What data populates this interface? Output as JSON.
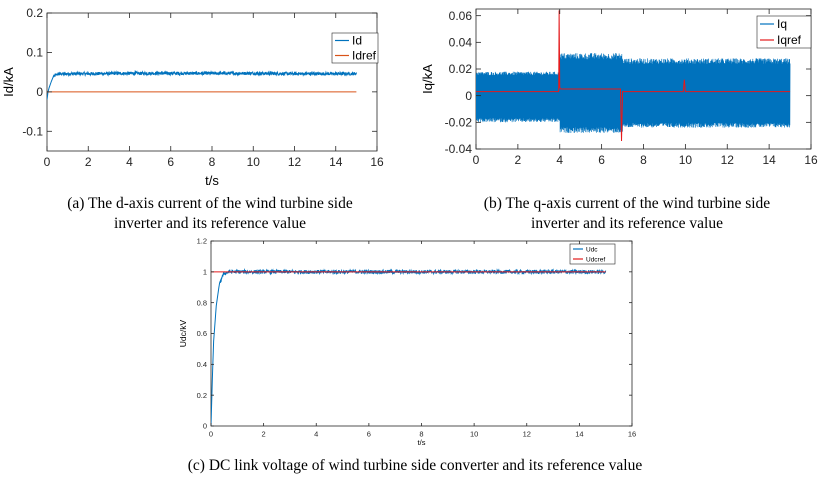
{
  "captions": {
    "a": [
      "(a) The d-axis current of the wind turbine side",
      "inverter and its reference value"
    ],
    "b": [
      "(b) The q-axis current of the wind turbine side",
      "inverter and its reference value"
    ],
    "c": [
      "(c) DC link voltage of wind turbine side converter and its reference value"
    ]
  },
  "colors": {
    "signal": "#0072bd",
    "ref_a": "#d95319",
    "ref_bc": "#e41a1c",
    "axis": "#000000"
  },
  "chart_data": [
    {
      "id": "a",
      "type": "line",
      "xlabel": "t/s",
      "ylabel": "Id/kA",
      "xlim": [
        0,
        16
      ],
      "ylim": [
        -0.15,
        0.2
      ],
      "xticks": [
        0,
        2,
        4,
        6,
        8,
        10,
        12,
        14,
        16
      ],
      "yticks": [
        -0.1,
        0,
        0.1,
        0.2
      ],
      "ytick_labels": [
        "-0.1",
        "0",
        "0.1",
        "0.2"
      ],
      "legend": {
        "position": "top-right",
        "entries": [
          "Id",
          "Idref"
        ]
      },
      "series": [
        {
          "name": "Id",
          "x": [
            0,
            0.05,
            0.1,
            0.2,
            0.3,
            0.5,
            1,
            2,
            4,
            6,
            8,
            10,
            12,
            14,
            15
          ],
          "values": [
            -0.02,
            0.0,
            0.01,
            0.025,
            0.038,
            0.045,
            0.046,
            0.046,
            0.047,
            0.047,
            0.047,
            0.047,
            0.046,
            0.046,
            0.046
          ],
          "ripple": 0.004
        },
        {
          "name": "Idref",
          "x": [
            0,
            15
          ],
          "values": [
            0,
            0
          ]
        }
      ]
    },
    {
      "id": "b",
      "type": "line",
      "xlabel": "",
      "ylabel": "Iq/kA",
      "xlim": [
        0,
        16
      ],
      "ylim": [
        -0.04,
        0.065
      ],
      "xticks": [
        0,
        2,
        4,
        6,
        8,
        10,
        12,
        14,
        16
      ],
      "yticks": [
        -0.04,
        -0.02,
        0,
        0.02,
        0.04,
        0.06
      ],
      "ytick_labels": [
        "-0.04",
        "-0.02",
        "0",
        "0.02",
        "0.04",
        "0.06"
      ],
      "legend": {
        "position": "top-right",
        "entries": [
          "Iq",
          "Iqref"
        ]
      },
      "series": [
        {
          "name": "Iq",
          "band": [
            [
              0,
              4,
              -0.02,
              0.018
            ],
            [
              4,
              7,
              -0.028,
              0.032
            ],
            [
              7,
              15,
              -0.024,
              0.028
            ]
          ]
        },
        {
          "name": "Iqref",
          "x": [
            0,
            3.95,
            3.97,
            4.0,
            4.05,
            6.9,
            6.95,
            7.0,
            9.9,
            9.95,
            10.0,
            15
          ],
          "values": [
            0.003,
            0.003,
            0.064,
            0.006,
            0.005,
            0.005,
            -0.034,
            0.003,
            0.003,
            0.012,
            0.003,
            0.003
          ]
        }
      ]
    },
    {
      "id": "c",
      "type": "line",
      "xlabel": "t/s",
      "ylabel": "Udc/kV",
      "xlim": [
        0,
        16
      ],
      "ylim": [
        0,
        1.2
      ],
      "xticks": [
        0,
        2,
        4,
        6,
        8,
        10,
        12,
        14,
        16
      ],
      "yticks": [
        0,
        0.2,
        0.4,
        0.6,
        0.8,
        1,
        1.2
      ],
      "ytick_labels": [
        "0",
        "0.2",
        "0.4",
        "0.6",
        "0.8",
        "1",
        "1.2"
      ],
      "legend": {
        "position": "top-right",
        "entries": [
          "Udc",
          "Udcref"
        ]
      },
      "series": [
        {
          "name": "Udc",
          "x": [
            0,
            0.05,
            0.1,
            0.2,
            0.3,
            0.4,
            0.5,
            0.7,
            1,
            4,
            8,
            12,
            15
          ],
          "values": [
            0,
            0.3,
            0.55,
            0.78,
            0.9,
            0.96,
            0.99,
            1.0,
            1.0,
            1.0,
            1.0,
            1.0,
            1.0
          ],
          "ripple": 0.012
        },
        {
          "name": "Udcref",
          "x": [
            0,
            15
          ],
          "values": [
            1,
            1
          ]
        }
      ]
    }
  ]
}
